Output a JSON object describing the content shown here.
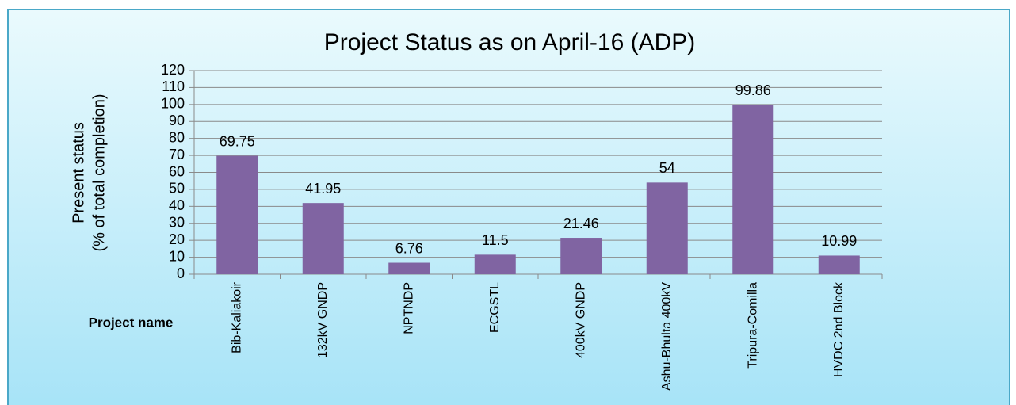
{
  "chart_data": {
    "type": "bar",
    "title": "Project  Status as on  April-16 (ADP)",
    "ylabel": [
      "Present status",
      "(% of total completion)"
    ],
    "xlabel": "Project name",
    "categories": [
      "Bib-Kaliakoir",
      "132kV GNDP",
      "NPTNDP",
      "ECGSTL",
      "400kV GNDP",
      "Ashu-Bhulta 400kV",
      "Tripura-Comilla",
      "HVDC 2nd Block"
    ],
    "values": [
      69.75,
      41.95,
      6.76,
      11.5,
      21.46,
      54,
      99.86,
      10.99
    ],
    "color": "#8064a2",
    "ylim": [
      0,
      120
    ],
    "yticks": [
      0,
      10,
      20,
      30,
      40,
      50,
      60,
      70,
      80,
      90,
      100,
      110,
      120
    ],
    "grid": true
  }
}
